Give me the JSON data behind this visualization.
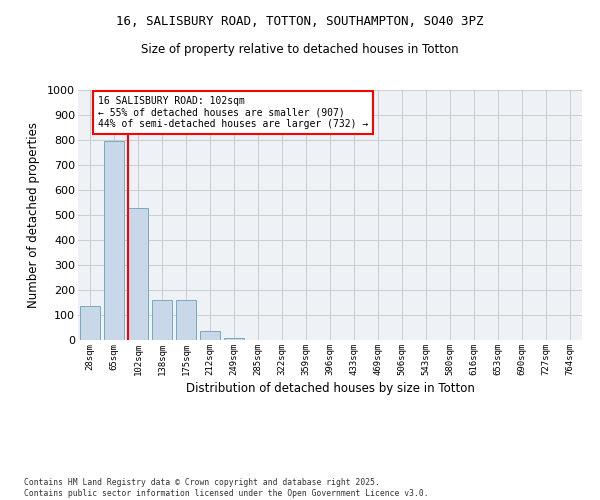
{
  "title_line1": "16, SALISBURY ROAD, TOTTON, SOUTHAMPTON, SO40 3PZ",
  "title_line2": "Size of property relative to detached houses in Totton",
  "xlabel": "Distribution of detached houses by size in Totton",
  "ylabel": "Number of detached properties",
  "categories": [
    "28sqm",
    "65sqm",
    "102sqm",
    "138sqm",
    "175sqm",
    "212sqm",
    "249sqm",
    "285sqm",
    "322sqm",
    "359sqm",
    "396sqm",
    "433sqm",
    "469sqm",
    "506sqm",
    "543sqm",
    "580sqm",
    "616sqm",
    "653sqm",
    "690sqm",
    "727sqm",
    "764sqm"
  ],
  "values": [
    135,
    795,
    530,
    160,
    160,
    35,
    10,
    0,
    0,
    0,
    0,
    0,
    0,
    0,
    0,
    0,
    0,
    0,
    0,
    0,
    0
  ],
  "bar_color": "#c8d8e8",
  "bar_edge_color": "#7aaabf",
  "vline_color": "red",
  "vline_index": 2,
  "annotation_title": "16 SALISBURY ROAD: 102sqm",
  "annotation_line2": "← 55% of detached houses are smaller (907)",
  "annotation_line3": "44% of semi-detached houses are larger (732) →",
  "annotation_box_color": "red",
  "ylim": [
    0,
    1000
  ],
  "yticks": [
    0,
    100,
    200,
    300,
    400,
    500,
    600,
    700,
    800,
    900,
    1000
  ],
  "grid_color": "#cccccc",
  "background_color": "#eef2f7",
  "footer_line1": "Contains HM Land Registry data © Crown copyright and database right 2025.",
  "footer_line2": "Contains public sector information licensed under the Open Government Licence v3.0."
}
